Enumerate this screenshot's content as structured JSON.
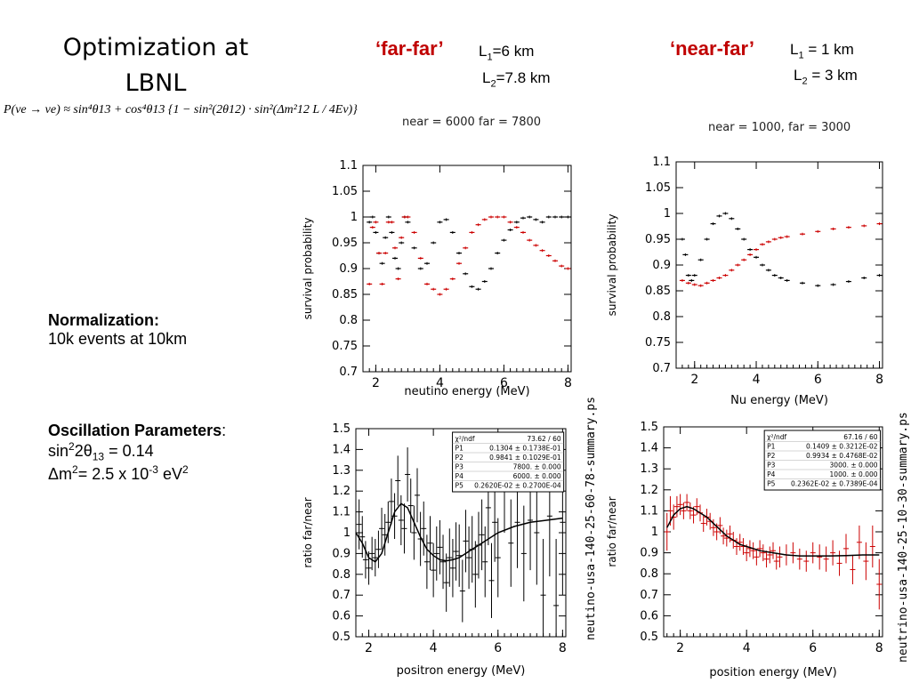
{
  "slide": {
    "title_line1": "Optimization at",
    "title_line2": "LBNL",
    "formula": "P(νe → νe) ≈ sin⁴θ13 + cos⁴θ13 {1 − sin²(2θ12) · sin²(Δm²12 L / 4Eν)}",
    "far_far": {
      "name": "‘far-far’",
      "l1": "L",
      "l1_sub": "1",
      "l1_val": "=6 km",
      "l2": "L",
      "l2_sub": "2",
      "l2_val": "=7.8 km"
    },
    "near_far": {
      "name": "‘near-far’",
      "l1": "L",
      "l1_sub": "1",
      "l1_val": " = 1 km",
      "l2": "L",
      "l2_sub": "2",
      "l2_val": " = 3 km"
    },
    "cut_left": "near = 6000 far = 7800",
    "cut_right": "near = 1000, far = 3000",
    "normalization_heading": "Normalization:",
    "normalization_text": "10k events at 10km",
    "osc_heading": "Oscillation Parameters",
    "osc_colon": ":",
    "osc_sin_a": "sin",
    "osc_sin_sup": "2",
    "osc_sin_b": "2θ",
    "osc_sin_sub": "13",
    "osc_sin_val": " = 0.14",
    "osc_dm_a": "Δm",
    "osc_dm_sup": "2",
    "osc_dm_b": "= 2.5 x 10",
    "osc_dm_exp": "-3",
    "osc_dm_c": " eV",
    "osc_dm_sup2": "2",
    "ps_left": "neutino-usa-140-25-60-78-summary.ps",
    "ps_right": "neutrino-usa-140-25-10-30-summary.ps"
  },
  "colors": {
    "accent_red": "#cc0000",
    "data_black": "#000000"
  },
  "chart_data": [
    {
      "id": "far-far-survival",
      "type": "scatter",
      "xlabel": "neutino energy (MeV)",
      "ylabel": "survival probability",
      "xlim": [
        1.6,
        8.1
      ],
      "ylim": [
        0.7,
        1.1
      ],
      "xticks": [
        2,
        4,
        6,
        8
      ],
      "yticks": [
        0.7,
        0.75,
        0.8,
        0.85,
        0.9,
        0.95,
        1,
        1.05,
        1.1
      ],
      "ytick_labels": [
        "0.7",
        "0.75",
        "0.8",
        "0.85",
        "0.9",
        "0.95",
        "1",
        "1.05",
        "1.1"
      ],
      "series": [
        {
          "color": "#000000",
          "x": [
            1.8,
            1.9,
            2.0,
            2.1,
            2.2,
            2.3,
            2.4,
            2.5,
            2.6,
            2.7,
            2.8,
            2.9,
            3.0,
            3.2,
            3.4,
            3.6,
            3.8,
            4.0,
            4.2,
            4.4,
            4.6,
            4.8,
            5.0,
            5.2,
            5.4,
            5.6,
            5.8,
            6.0,
            6.2,
            6.4,
            6.6,
            6.8,
            7.0,
            7.2,
            7.4,
            7.6,
            7.8,
            8.0
          ],
          "y": [
            0.99,
            1.0,
            0.97,
            0.93,
            0.91,
            0.96,
            1.0,
            0.97,
            0.92,
            0.9,
            0.95,
            1.0,
            0.99,
            0.94,
            0.9,
            0.91,
            0.95,
            0.99,
            0.995,
            0.97,
            0.93,
            0.89,
            0.865,
            0.86,
            0.875,
            0.9,
            0.93,
            0.955,
            0.975,
            0.99,
            0.998,
            1.0,
            0.995,
            0.99,
            1.0,
            1.0,
            1.0,
            1.0
          ]
        },
        {
          "color": "#cc0000",
          "x": [
            1.8,
            1.9,
            2.0,
            2.1,
            2.2,
            2.3,
            2.4,
            2.5,
            2.6,
            2.7,
            2.8,
            2.9,
            3.0,
            3.2,
            3.4,
            3.6,
            3.8,
            4.0,
            4.2,
            4.4,
            4.6,
            4.8,
            5.0,
            5.2,
            5.4,
            5.6,
            5.8,
            6.0,
            6.2,
            6.4,
            6.6,
            6.8,
            7.0,
            7.2,
            7.4,
            7.6,
            7.8,
            8.0
          ],
          "y": [
            0.87,
            0.98,
            0.99,
            0.93,
            0.87,
            0.93,
            0.99,
            0.99,
            0.94,
            0.88,
            0.96,
            1.0,
            1.0,
            0.97,
            0.92,
            0.87,
            0.86,
            0.85,
            0.86,
            0.88,
            0.91,
            0.94,
            0.97,
            0.985,
            0.995,
            1.0,
            1.0,
            1.0,
            0.99,
            0.98,
            0.97,
            0.955,
            0.945,
            0.935,
            0.925,
            0.915,
            0.905,
            0.9
          ]
        }
      ]
    },
    {
      "id": "near-far-survival",
      "type": "scatter",
      "xlabel": "Nu energy (MeV)",
      "ylabel": "survival probability",
      "xlim": [
        1.4,
        8.1
      ],
      "ylim": [
        0.7,
        1.1
      ],
      "xticks": [
        2,
        4,
        6,
        8
      ],
      "yticks": [
        0.7,
        0.75,
        0.8,
        0.85,
        0.9,
        0.95,
        1,
        1.05,
        1.1
      ],
      "ytick_labels": [
        "0.7",
        "0.75",
        "0.8",
        "0.85",
        "0.9",
        "0.95",
        "1",
        "1.05",
        "1.1"
      ],
      "series": [
        {
          "color": "#000000",
          "x": [
            1.6,
            1.7,
            1.8,
            1.9,
            2.0,
            2.2,
            2.4,
            2.6,
            2.8,
            3.0,
            3.2,
            3.4,
            3.6,
            3.8,
            4.0,
            4.2,
            4.4,
            4.6,
            4.8,
            5.0,
            5.5,
            6.0,
            6.5,
            7.0,
            7.5,
            8.0
          ],
          "y": [
            0.95,
            0.92,
            0.88,
            0.87,
            0.88,
            0.91,
            0.95,
            0.98,
            0.995,
            1.0,
            0.99,
            0.97,
            0.95,
            0.93,
            0.915,
            0.9,
            0.89,
            0.88,
            0.875,
            0.87,
            0.865,
            0.86,
            0.862,
            0.868,
            0.875,
            0.88
          ]
        },
        {
          "color": "#cc0000",
          "x": [
            1.6,
            1.8,
            2.0,
            2.2,
            2.4,
            2.6,
            2.8,
            3.0,
            3.2,
            3.4,
            3.6,
            3.8,
            4.0,
            4.2,
            4.4,
            4.6,
            4.8,
            5.0,
            5.5,
            6.0,
            6.5,
            7.0,
            7.5,
            8.0
          ],
          "y": [
            0.87,
            0.865,
            0.862,
            0.86,
            0.865,
            0.87,
            0.875,
            0.88,
            0.89,
            0.9,
            0.91,
            0.92,
            0.93,
            0.94,
            0.945,
            0.95,
            0.953,
            0.955,
            0.96,
            0.965,
            0.97,
            0.973,
            0.976,
            0.98
          ]
        }
      ]
    },
    {
      "id": "far-far-ratio",
      "type": "line",
      "xlabel": "positron energy (MeV)",
      "ylabel": "ratio far/near",
      "xlim": [
        1.6,
        8.1
      ],
      "ylim": [
        0.5,
        1.5
      ],
      "xticks": [
        2,
        4,
        6,
        8
      ],
      "yticks": [
        0.5,
        0.6,
        0.7,
        0.8,
        0.9,
        1,
        1.1,
        1.2,
        1.3,
        1.4,
        1.5
      ],
      "ytick_labels": [
        "0.5",
        "0.6",
        "0.7",
        "0.8",
        "0.9",
        "1",
        "1.1",
        "1.2",
        "1.3",
        "1.4",
        "1.5"
      ],
      "fit_box": [
        [
          "χ²/ndf",
          "73.62  /    60"
        ],
        [
          "P1",
          "0.1304 ±  0.1738E-01"
        ],
        [
          "P2",
          "0.9841 ±  0.1029E-01"
        ],
        [
          "P3",
          "7800.  ±   0.000"
        ],
        [
          "P4",
          "6000.  ±   0.000"
        ],
        [
          "P5",
          "0.2620E-02 ±  0.2700E-04"
        ]
      ],
      "fit": {
        "x": [
          1.6,
          1.8,
          2.0,
          2.2,
          2.4,
          2.6,
          2.8,
          3.0,
          3.2,
          3.4,
          3.6,
          3.8,
          4.0,
          4.2,
          4.4,
          4.6,
          4.8,
          5.0,
          5.5,
          6.0,
          6.5,
          7.0,
          7.5,
          8.0
        ],
        "y": [
          1.0,
          0.95,
          0.88,
          0.86,
          0.9,
          1.0,
          1.1,
          1.14,
          1.12,
          1.05,
          0.98,
          0.92,
          0.89,
          0.87,
          0.865,
          0.87,
          0.88,
          0.9,
          0.95,
          1.0,
          1.03,
          1.05,
          1.06,
          1.07
        ]
      },
      "points": {
        "x": [
          1.7,
          1.8,
          1.9,
          2.0,
          2.1,
          2.2,
          2.3,
          2.4,
          2.5,
          2.6,
          2.7,
          2.8,
          2.9,
          3.0,
          3.1,
          3.2,
          3.3,
          3.4,
          3.5,
          3.6,
          3.7,
          3.8,
          3.9,
          4.0,
          4.1,
          4.2,
          4.3,
          4.4,
          4.5,
          4.6,
          4.7,
          4.8,
          4.9,
          5.0,
          5.1,
          5.2,
          5.3,
          5.4,
          5.5,
          5.6,
          5.7,
          5.8,
          5.9,
          6.0,
          6.2,
          6.4,
          6.6,
          6.8,
          7.0,
          7.2,
          7.4,
          7.6,
          7.8,
          8.0
        ],
        "y": [
          1.04,
          0.98,
          0.87,
          0.83,
          0.9,
          0.88,
          0.92,
          1.02,
          0.99,
          1.05,
          1.15,
          1.08,
          1.25,
          1.06,
          1.02,
          1.28,
          1.13,
          1.0,
          1.18,
          0.97,
          1.02,
          0.86,
          0.95,
          0.82,
          0.9,
          0.93,
          0.86,
          0.76,
          0.88,
          0.83,
          0.91,
          0.89,
          0.72,
          0.96,
          0.88,
          0.92,
          0.8,
          0.94,
          0.99,
          0.86,
          1.12,
          0.77,
          1.05,
          0.88,
          1.2,
          0.95,
          1.05,
          0.9,
          1.06,
          1.0,
          0.7,
          1.08,
          0.65,
          1.05
        ],
        "err": [
          0.12,
          0.1,
          0.09,
          0.08,
          0.08,
          0.09,
          0.09,
          0.1,
          0.1,
          0.1,
          0.11,
          0.11,
          0.12,
          0.12,
          0.12,
          0.13,
          0.13,
          0.13,
          0.13,
          0.13,
          0.13,
          0.13,
          0.13,
          0.13,
          0.13,
          0.13,
          0.13,
          0.14,
          0.14,
          0.14,
          0.14,
          0.15,
          0.15,
          0.15,
          0.15,
          0.16,
          0.16,
          0.16,
          0.17,
          0.17,
          0.18,
          0.18,
          0.19,
          0.19,
          0.2,
          0.21,
          0.22,
          0.23,
          0.24,
          0.25,
          0.27,
          0.29,
          0.32,
          0.35
        ]
      }
    },
    {
      "id": "near-far-ratio",
      "type": "line",
      "xlabel": "position energy (MeV)",
      "ylabel": "ratio far/near",
      "xlim": [
        1.5,
        8.1
      ],
      "ylim": [
        0.5,
        1.5
      ],
      "xticks": [
        2,
        4,
        6,
        8
      ],
      "yticks": [
        0.5,
        0.6,
        0.7,
        0.8,
        0.9,
        1,
        1.1,
        1.2,
        1.3,
        1.4,
        1.5
      ],
      "ytick_labels": [
        "0.5",
        "0.6",
        "0.7",
        "0.8",
        "0.9",
        "1",
        "1.1",
        "1.2",
        "1.3",
        "1.4",
        "1.5"
      ],
      "fit_box": [
        [
          "χ²/ndf",
          "67.16  /    60"
        ],
        [
          "P1",
          "0.1409 ±  0.3212E-02"
        ],
        [
          "P2",
          "0.9934 ±  0.4768E-02"
        ],
        [
          "P3",
          "3000.  ±   0.000"
        ],
        [
          "P4",
          "1000.  ±   0.000"
        ],
        [
          "P5",
          "0.2362E-02 ±  0.7389E-04"
        ]
      ],
      "fit": {
        "x": [
          1.6,
          1.8,
          2.0,
          2.2,
          2.4,
          2.6,
          2.8,
          3.0,
          3.2,
          3.4,
          3.6,
          3.8,
          4.0,
          4.4,
          4.8,
          5.2,
          5.6,
          6.0,
          6.5,
          7.0,
          7.5,
          8.0
        ],
        "y": [
          1.02,
          1.08,
          1.11,
          1.12,
          1.11,
          1.09,
          1.07,
          1.04,
          1.01,
          0.98,
          0.96,
          0.94,
          0.93,
          0.91,
          0.9,
          0.89,
          0.885,
          0.885,
          0.885,
          0.887,
          0.89,
          0.89
        ]
      },
      "points": {
        "x": [
          1.6,
          1.7,
          1.8,
          1.9,
          2.0,
          2.1,
          2.2,
          2.3,
          2.4,
          2.5,
          2.6,
          2.7,
          2.8,
          2.9,
          3.0,
          3.1,
          3.2,
          3.3,
          3.4,
          3.5,
          3.6,
          3.7,
          3.8,
          3.9,
          4.0,
          4.1,
          4.2,
          4.3,
          4.4,
          4.5,
          4.6,
          4.7,
          4.8,
          4.9,
          5.0,
          5.2,
          5.4,
          5.6,
          5.8,
          6.0,
          6.2,
          6.4,
          6.6,
          6.8,
          7.0,
          7.2,
          7.4,
          7.6,
          7.8,
          8.0
        ],
        "y": [
          1.0,
          1.1,
          1.07,
          1.12,
          1.13,
          1.1,
          1.14,
          1.1,
          1.08,
          1.12,
          1.09,
          1.04,
          1.07,
          1.05,
          1.02,
          1.0,
          1.03,
          0.98,
          0.97,
          0.99,
          0.96,
          0.93,
          0.95,
          0.93,
          0.9,
          0.92,
          0.91,
          0.88,
          0.92,
          0.9,
          0.87,
          0.89,
          0.91,
          0.86,
          0.88,
          0.89,
          0.9,
          0.87,
          0.86,
          0.9,
          0.88,
          0.87,
          0.9,
          0.85,
          0.92,
          0.82,
          0.95,
          0.86,
          0.93,
          0.75
        ],
        "err": [
          0.09,
          0.07,
          0.06,
          0.05,
          0.05,
          0.04,
          0.04,
          0.04,
          0.04,
          0.04,
          0.04,
          0.04,
          0.04,
          0.04,
          0.04,
          0.04,
          0.04,
          0.04,
          0.04,
          0.04,
          0.04,
          0.04,
          0.04,
          0.04,
          0.04,
          0.04,
          0.04,
          0.04,
          0.04,
          0.04,
          0.04,
          0.04,
          0.04,
          0.04,
          0.05,
          0.05,
          0.05,
          0.05,
          0.05,
          0.05,
          0.06,
          0.06,
          0.06,
          0.06,
          0.07,
          0.07,
          0.08,
          0.09,
          0.1,
          0.12
        ]
      }
    }
  ]
}
